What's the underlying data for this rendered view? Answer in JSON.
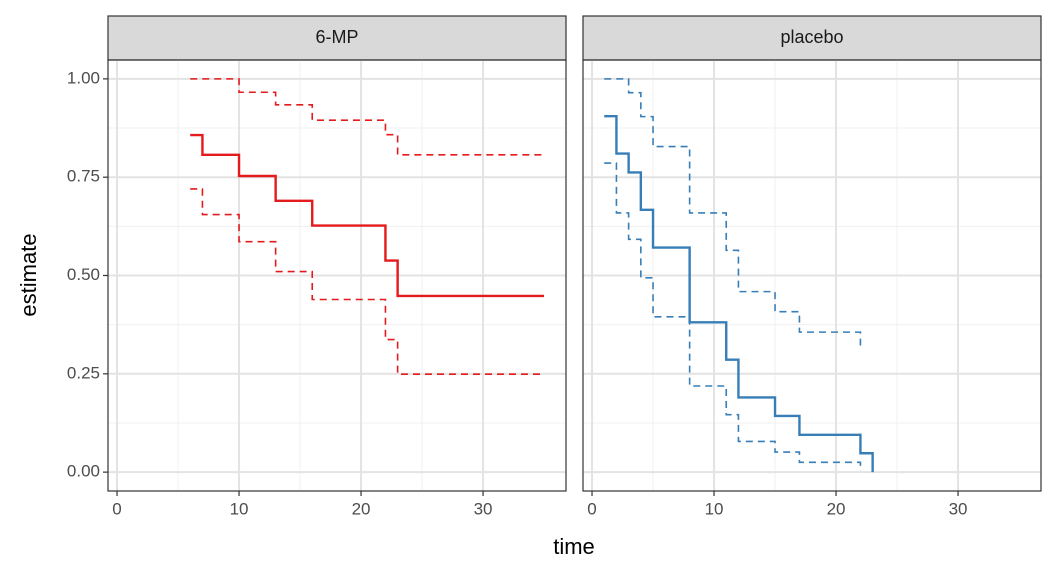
{
  "chart_data": [
    {
      "type": "step",
      "title": "6-MP",
      "xlabel": "time",
      "ylabel": "estimate",
      "xlim": [
        -0.74,
        36.8
      ],
      "xticks": [
        0,
        10,
        20,
        30
      ],
      "ylim": [
        -0.048,
        1.048
      ],
      "yticks": [
        {
          "value": 0,
          "label": "0.00"
        },
        {
          "value": 0.25,
          "label": "0.25"
        },
        {
          "value": 0.5,
          "label": "0.50"
        },
        {
          "value": 0.75,
          "label": "0.75"
        },
        {
          "value": 1,
          "label": "1.00"
        }
      ],
      "grid": true,
      "series": [
        {
          "color": "#e41a1c",
          "style": "solid",
          "x": [
            6,
            7,
            10,
            13,
            16,
            22,
            23,
            35
          ],
          "values": [
            0.857,
            0.807,
            0.753,
            0.69,
            0.627,
            0.538,
            0.448,
            0.448
          ]
        },
        {
          "color": "#e41a1c",
          "style": "dashed",
          "x": [
            6,
            10,
            13,
            16,
            22,
            23,
            35
          ],
          "values": [
            1,
            0.966,
            0.934,
            0.895,
            0.858,
            0.807,
            0.807
          ]
        },
        {
          "color": "#e41a1c",
          "style": "dashed",
          "x": [
            6,
            7,
            10,
            13,
            16,
            22,
            23,
            35
          ],
          "values": [
            0.72,
            0.655,
            0.586,
            0.51,
            0.439,
            0.337,
            0.249,
            0.249
          ]
        }
      ]
    },
    {
      "type": "step",
      "title": "placebo",
      "xlim": [
        -0.74,
        36.8
      ],
      "xticks": [
        0,
        10,
        20,
        30
      ],
      "ylim": [
        -0.048,
        1.048
      ],
      "yticks": [
        0,
        0.25,
        0.5,
        0.75,
        1
      ],
      "grid": true,
      "series": [
        {
          "color": "#377eb8",
          "style": "solid",
          "x": [
            1,
            2,
            3,
            4,
            5,
            8,
            11,
            12,
            15,
            17,
            22,
            23
          ],
          "values": [
            0.905,
            0.81,
            0.762,
            0.667,
            0.571,
            0.381,
            0.286,
            0.19,
            0.143,
            0.095,
            0.048,
            0
          ]
        },
        {
          "color": "#377eb8",
          "style": "dashed",
          "x": [
            1,
            3,
            4,
            5,
            8,
            11,
            12,
            15,
            17,
            22
          ],
          "values": [
            1,
            0.965,
            0.904,
            0.828,
            0.659,
            0.564,
            0.459,
            0.408,
            0.356,
            0.322
          ]
        },
        {
          "color": "#377eb8",
          "style": "dashed",
          "x": [
            1,
            2,
            3,
            4,
            5,
            8,
            11,
            12,
            15,
            17,
            22
          ],
          "values": [
            0.786,
            0.659,
            0.592,
            0.494,
            0.395,
            0.219,
            0.146,
            0.078,
            0.051,
            0.025,
            0.003
          ]
        }
      ]
    }
  ]
}
